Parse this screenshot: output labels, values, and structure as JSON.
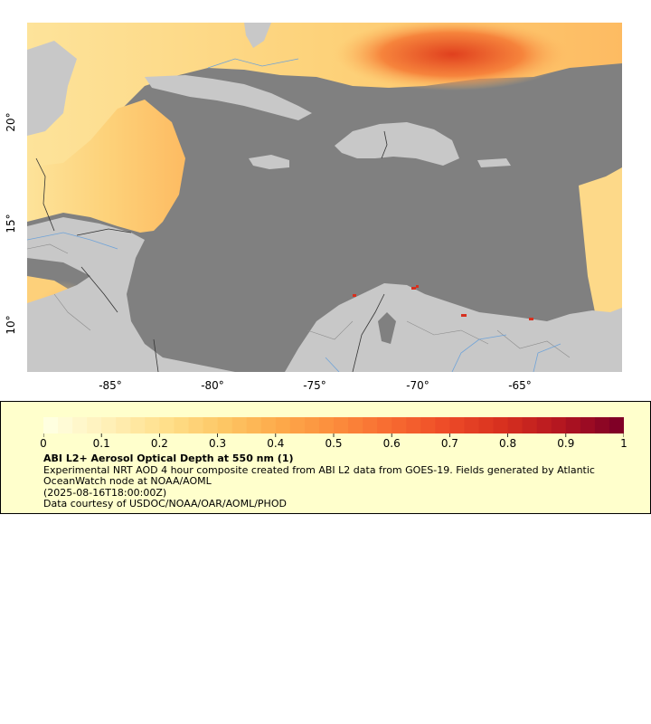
{
  "map": {
    "lat_ticks": [
      "20°",
      "15°",
      "10°"
    ],
    "lon_ticks": [
      "-85°",
      "-80°",
      "-75°",
      "-70°",
      "-65°"
    ],
    "colors": {
      "ocean": "#808080",
      "land": "#c8c8c8",
      "river": "#6fa3d8",
      "border": "#333333"
    }
  },
  "legend": {
    "title": "ABI L2+ Aerosol Optical Depth at 550 nm (1)",
    "description": "Experimental NRT AOD 4 hour composite created from ABI L2 data from GOES-19. Fields generated by Atlantic OceanWatch node at NOAA/AOML",
    "timestamp": "(2025-08-16T18:00:00Z)",
    "credit": "Data courtesy of USDOC/NOAA/OAR/AOML/PHOD",
    "colorbar": {
      "min": 0,
      "max": 1,
      "tick_labels": [
        "0",
        "0.1",
        "0.2",
        "0.3",
        "0.4",
        "0.5",
        "0.6",
        "0.7",
        "0.8",
        "0.9",
        "1"
      ],
      "colors": [
        "#ffffe0",
        "#fff0b8",
        "#ffe08c",
        "#fdc866",
        "#fdab4b",
        "#fc8d3c",
        "#f86b31",
        "#ed4b27",
        "#d7301f",
        "#b41620",
        "#800026"
      ]
    }
  }
}
